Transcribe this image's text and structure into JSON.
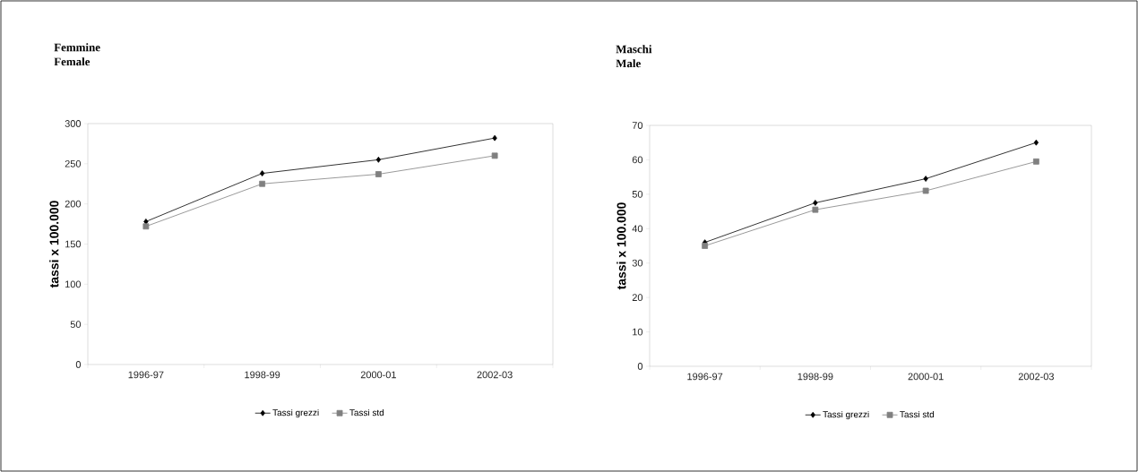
{
  "chart_data": [
    {
      "type": "line",
      "title": "Femmine",
      "subtitle": "Female",
      "ylabel": "tassi x 100.000",
      "categories": [
        "1996-97",
        "1998-99",
        "2000-01",
        "2002-03"
      ],
      "series": [
        {
          "name": "Tassi grezzi",
          "color": "#000000",
          "marker": "diamond",
          "values": [
            178,
            238,
            255,
            282
          ]
        },
        {
          "name": "Tassi std",
          "color": "#808080",
          "marker": "square",
          "values": [
            172,
            225,
            237,
            260
          ]
        }
      ],
      "ylim": [
        0,
        300
      ],
      "yticks": [
        0,
        50,
        100,
        150,
        200,
        250,
        300
      ],
      "grid": false,
      "legend": "bottom",
      "line_style": "solid"
    },
    {
      "type": "line",
      "title": "Maschi",
      "subtitle": "Male",
      "ylabel": "tassi x 100.000",
      "categories": [
        "1996-97",
        "1998-99",
        "2000-01",
        "2002-03"
      ],
      "series": [
        {
          "name": "Tassi grezzi",
          "color": "#000000",
          "marker": "diamond",
          "values": [
            36,
            47.5,
            54.5,
            65
          ]
        },
        {
          "name": "Tassi std",
          "color": "#808080",
          "marker": "square",
          "values": [
            35,
            45.5,
            51,
            59.5
          ]
        }
      ],
      "ylim": [
        0,
        70
      ],
      "yticks": [
        0,
        10,
        20,
        30,
        40,
        50,
        60,
        70
      ],
      "grid": false,
      "legend": "bottom",
      "line_style": "solid"
    }
  ]
}
